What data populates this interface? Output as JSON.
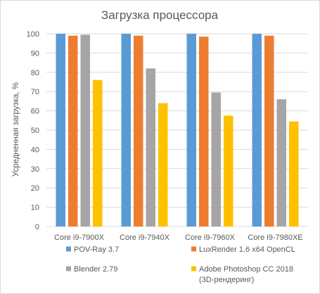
{
  "chart_data": {
    "type": "bar",
    "title": "Загрузка процессора",
    "ylabel": "Усредненная загрузка, %",
    "xlabel": "",
    "ylim": [
      0,
      100
    ],
    "yticks": [
      0,
      10,
      20,
      30,
      40,
      50,
      60,
      70,
      80,
      90,
      100
    ],
    "grid": true,
    "legend_position": "bottom",
    "categories": [
      "Core i9-7900X",
      "Core i9-7940X",
      "Core i9-7960X",
      "Core i9-7980XE"
    ],
    "series": [
      {
        "name": "POV-Ray 3.7",
        "color": "#5b9bd5",
        "values": [
          100,
          100,
          100,
          100
        ]
      },
      {
        "name": "LuxRender 1.6 x64 OpenCL",
        "color": "#ed7d31",
        "values": [
          99,
          99,
          98.5,
          99
        ]
      },
      {
        "name": "Blender 2.79",
        "color": "#a5a5a5",
        "values": [
          99.5,
          82,
          69.5,
          66
        ]
      },
      {
        "name": "Adobe Photoshop CC 2018 (3D-рендеринг)",
        "color": "#ffc000",
        "values": [
          76,
          64,
          57.5,
          54.5
        ]
      }
    ],
    "legend_lines": [
      [
        "POV-Ray 3.7"
      ],
      [
        "LuxRender 1.6 x64 OpenCL"
      ],
      [
        "Blender 2.79"
      ],
      [
        "Adobe Photoshop CC 2018",
        "(3D-рендеринг)"
      ]
    ]
  }
}
